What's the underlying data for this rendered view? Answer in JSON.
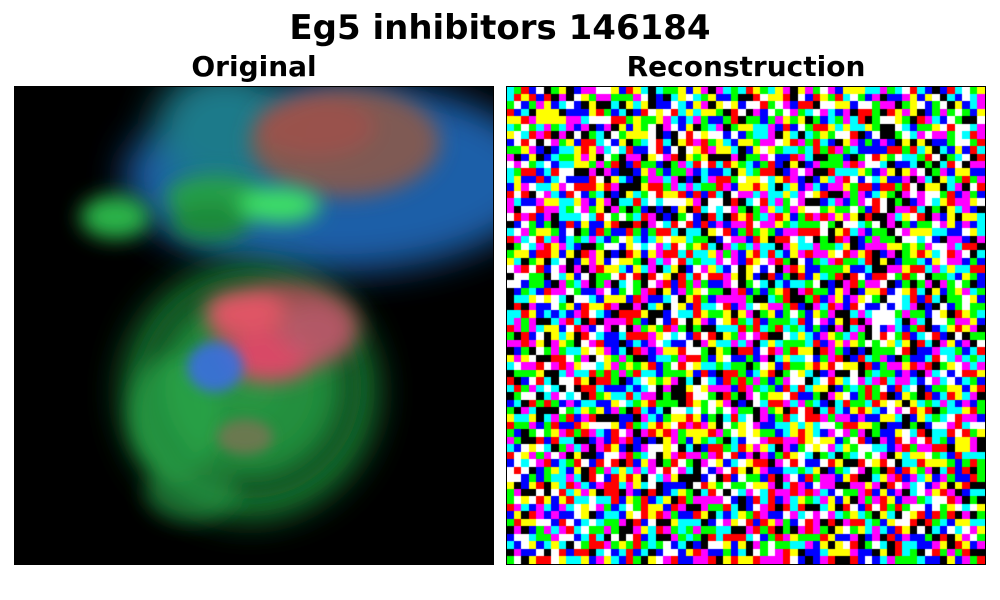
{
  "figure": {
    "title": "Eg5 inhibitors 146184"
  },
  "panels": [
    {
      "title": "Original",
      "content": "blurred fluorescence microscopy image of cells (green, blue, red channels)"
    },
    {
      "title": "Reconstruction",
      "content": "pixelated random noise in saturated RGB colors"
    }
  ],
  "colors": {
    "background": "#000000",
    "cell_green": "#2ecc55",
    "cell_blue": "#2a6ed8",
    "nucleus_red": "#e05060",
    "noise_palette": [
      "#ff0000",
      "#00ff00",
      "#0000ff",
      "#ffff00",
      "#ff00ff",
      "#00ffff",
      "#ffffff",
      "#000000"
    ]
  }
}
